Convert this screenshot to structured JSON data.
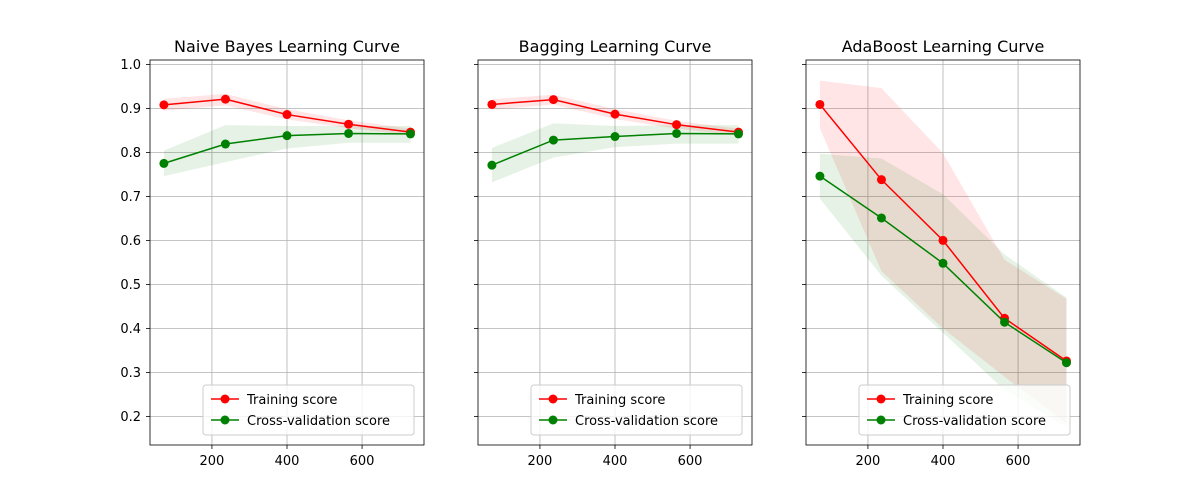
{
  "colors": {
    "training": "#ff0000",
    "cross_validation": "#008000",
    "grid": "#b0b0b0",
    "axes": "#000000"
  },
  "chart_data": [
    {
      "type": "line",
      "title": "Naive Bayes Learning Curve",
      "xlabel": "",
      "ylabel": "",
      "x": [
        72,
        236,
        400,
        564,
        729
      ],
      "xlim": [
        35,
        765
      ],
      "ylim": [
        0.135,
        1.01
      ],
      "xticks": [
        200,
        400,
        600
      ],
      "yticks": [
        0.2,
        0.3,
        0.4,
        0.5,
        0.6,
        0.7,
        0.8,
        0.9,
        1.0
      ],
      "show_yticklabels": true,
      "grid": true,
      "legend": "lower right",
      "series": [
        {
          "name": "Training score",
          "color": "red",
          "values": [
            0.908,
            0.921,
            0.886,
            0.864,
            0.846
          ],
          "band_low": [
            0.895,
            0.907,
            0.875,
            0.855,
            0.839
          ],
          "band_high": [
            0.922,
            0.933,
            0.898,
            0.873,
            0.854
          ]
        },
        {
          "name": "Cross-validation score",
          "color": "green",
          "values": [
            0.775,
            0.819,
            0.838,
            0.843,
            0.842
          ],
          "band_low": [
            0.746,
            0.778,
            0.809,
            0.822,
            0.822
          ],
          "band_high": [
            0.804,
            0.862,
            0.86,
            0.86,
            0.86
          ]
        }
      ]
    },
    {
      "type": "line",
      "title": "Bagging Learning Curve",
      "xlabel": "",
      "ylabel": "",
      "x": [
        72,
        236,
        400,
        564,
        729
      ],
      "xlim": [
        35,
        765
      ],
      "ylim": [
        0.135,
        1.01
      ],
      "xticks": [
        200,
        400,
        600
      ],
      "yticks": [
        0.2,
        0.3,
        0.4,
        0.5,
        0.6,
        0.7,
        0.8,
        0.9,
        1.0
      ],
      "show_yticklabels": false,
      "grid": true,
      "legend": "lower right",
      "series": [
        {
          "name": "Training score",
          "color": "red",
          "values": [
            0.909,
            0.92,
            0.887,
            0.863,
            0.846
          ],
          "band_low": [
            0.897,
            0.909,
            0.876,
            0.854,
            0.838
          ],
          "band_high": [
            0.921,
            0.931,
            0.898,
            0.872,
            0.854
          ]
        },
        {
          "name": "Cross-validation score",
          "color": "green",
          "values": [
            0.771,
            0.828,
            0.836,
            0.843,
            0.842
          ],
          "band_low": [
            0.732,
            0.788,
            0.812,
            0.82,
            0.82
          ],
          "band_high": [
            0.81,
            0.866,
            0.86,
            0.862,
            0.862
          ]
        }
      ]
    },
    {
      "type": "line",
      "title": "AdaBoost Learning Curve",
      "xlabel": "",
      "ylabel": "",
      "x": [
        72,
        236,
        400,
        564,
        729
      ],
      "xlim": [
        35,
        765
      ],
      "ylim": [
        0.135,
        1.01
      ],
      "xticks": [
        200,
        400,
        600
      ],
      "yticks": [
        0.2,
        0.3,
        0.4,
        0.5,
        0.6,
        0.7,
        0.8,
        0.9,
        1.0
      ],
      "show_yticklabels": false,
      "grid": true,
      "legend": "lower right",
      "series": [
        {
          "name": "Training score",
          "color": "red",
          "values": [
            0.909,
            0.738,
            0.6,
            0.423,
            0.326
          ],
          "band_low": [
            0.855,
            0.53,
            0.4,
            0.29,
            0.185
          ],
          "band_high": [
            0.963,
            0.946,
            0.798,
            0.556,
            0.467
          ]
        },
        {
          "name": "Cross-validation score",
          "color": "green",
          "values": [
            0.746,
            0.651,
            0.548,
            0.414,
            0.322
          ],
          "band_low": [
            0.695,
            0.52,
            0.39,
            0.26,
            0.175
          ],
          "band_high": [
            0.797,
            0.786,
            0.705,
            0.568,
            0.47
          ]
        }
      ]
    }
  ]
}
